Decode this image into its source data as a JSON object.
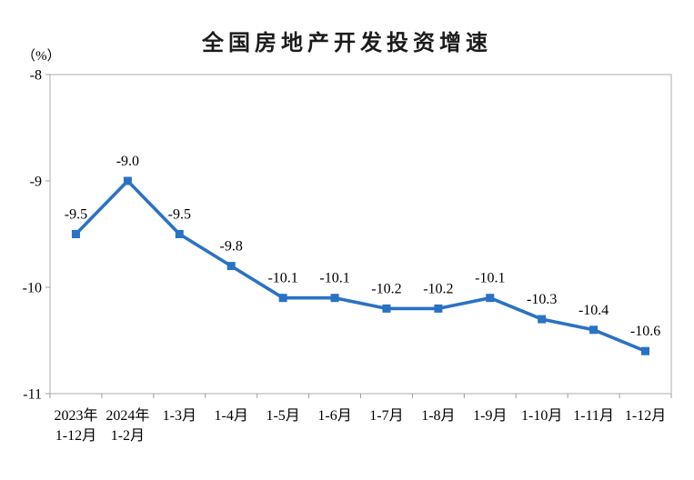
{
  "chart": {
    "title": "全国房地产开发投资增速",
    "unit_label": "（%）"
  },
  "chart_style": {
    "line_color": "#2A72C4",
    "marker_color": "#2A72C4",
    "axis_color": "#BFBFBF",
    "tick_color": "#9E9E9E",
    "text_color": "#000000"
  },
  "chart_data": {
    "type": "line",
    "title": "全国房地产开发投资增速",
    "unit": "（%）",
    "categories": [
      [
        "2023年",
        "1-12月"
      ],
      [
        "2024年",
        "1-2月"
      ],
      [
        "1-3月"
      ],
      [
        "1-4月"
      ],
      [
        "1-5月"
      ],
      [
        "1-6月"
      ],
      [
        "1-7月"
      ],
      [
        "1-8月"
      ],
      [
        "1-9月"
      ],
      [
        "1-10月"
      ],
      [
        "1-11月"
      ],
      [
        "1-12月"
      ]
    ],
    "values": [
      -9.5,
      -9.0,
      -9.5,
      -9.8,
      -10.1,
      -10.1,
      -10.2,
      -10.2,
      -10.1,
      -10.3,
      -10.4,
      -10.6
    ],
    "data_labels": [
      "-9.5",
      "-9.0",
      "-9.5",
      "-9.8",
      "-10.1",
      "-10.1",
      "-10.2",
      "-10.2",
      "-10.1",
      "-10.3",
      "-10.4",
      "-10.6"
    ],
    "ylim": [
      -11,
      -8
    ],
    "yticks": [
      -8,
      -9,
      -10,
      -11
    ],
    "xlabel": "",
    "ylabel": "（%）",
    "grid": false,
    "legend": "none",
    "marker": "square"
  }
}
